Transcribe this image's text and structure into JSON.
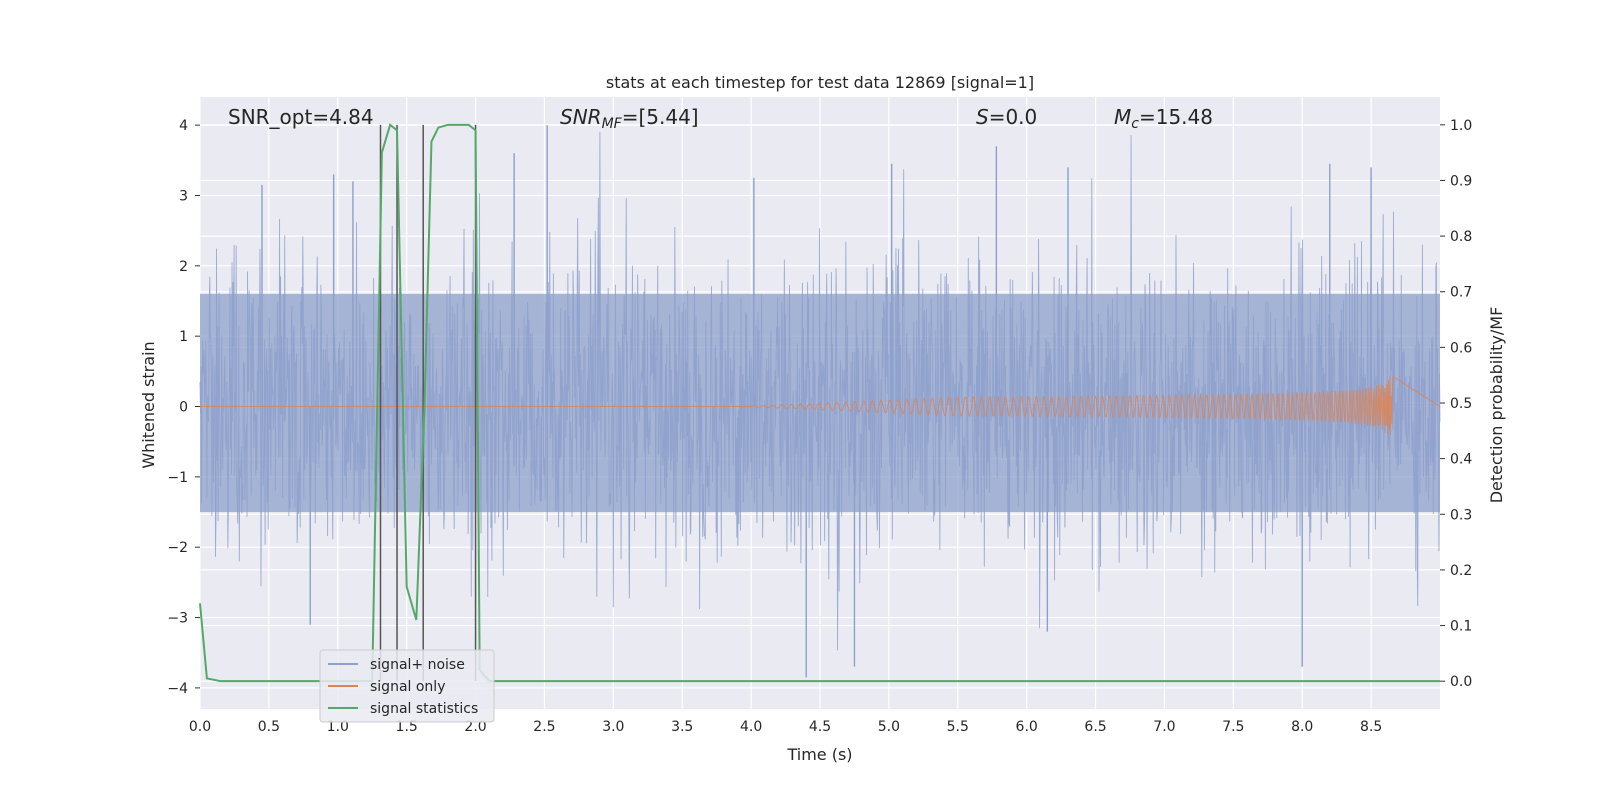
{
  "chart_data": {
    "type": "line",
    "title": "stats at each timestep for test data 12869 [signal=1]",
    "xlabel": "Time (s)",
    "ylabel": "Whitened strain",
    "y2label": "Detection probability/MF",
    "xlim": [
      0.0,
      9.0
    ],
    "ylim": [
      -4.3,
      4.4
    ],
    "y2lim": [
      -0.05,
      1.05
    ],
    "xticks": [
      "0.0",
      "0.5",
      "1.0",
      "1.5",
      "2.0",
      "2.5",
      "3.0",
      "3.5",
      "4.0",
      "4.5",
      "5.0",
      "5.5",
      "6.0",
      "6.5",
      "7.0",
      "7.5",
      "8.0",
      "8.5"
    ],
    "yticks": [
      "4",
      "3",
      "2",
      "1",
      "0",
      "−1",
      "−2",
      "−3",
      "−4"
    ],
    "y2ticks": [
      "1.0",
      "0.9",
      "0.8",
      "0.7",
      "0.6",
      "0.5",
      "0.4",
      "0.3",
      "0.2",
      "0.1",
      "0.0"
    ],
    "grid": true,
    "legend_position": "lower-left",
    "annotations": {
      "snr_opt": "SNR_opt=4.84",
      "snr_mf_main": "SNR",
      "snr_mf_sub": "MF",
      "snr_mf_value": "=[5.44]",
      "s_label": "S",
      "s_value": "=0.0",
      "mc_main": "M",
      "mc_sub": "c",
      "mc_value": "=15.48"
    },
    "series": [
      {
        "name": "signal+ noise",
        "color": "#8da0cb",
        "description_axis": "left",
        "x_range": [
          0.0,
          9.0
        ],
        "envelope_typical": [
          -1.5,
          1.6
        ],
        "envelope_extreme": [
          -3.9,
          4.0
        ],
        "peaks": [
          {
            "x": 0.45,
            "y": 3.15
          },
          {
            "x": 0.97,
            "y": 3.3
          },
          {
            "x": 1.11,
            "y": 3.2
          },
          {
            "x": 2.28,
            "y": 3.6
          },
          {
            "x": 2.52,
            "y": 4.0
          },
          {
            "x": 4.02,
            "y": 3.25
          },
          {
            "x": 5.02,
            "y": 3.45
          },
          {
            "x": 5.78,
            "y": 3.7
          },
          {
            "x": 6.3,
            "y": 3.4
          },
          {
            "x": 8.2,
            "y": 3.45
          },
          {
            "x": 8.5,
            "y": 3.4
          },
          {
            "x": 4.4,
            "y": -3.85
          },
          {
            "x": 4.75,
            "y": -3.7
          },
          {
            "x": 6.15,
            "y": -3.2
          },
          {
            "x": 8.0,
            "y": -3.7
          },
          {
            "x": 0.8,
            "y": -3.1
          }
        ]
      },
      {
        "name": "signal only",
        "color": "#dd8452",
        "description_axis": "left",
        "chirp": {
          "start": 4.0,
          "merger": 8.66,
          "peak_amplitude": 0.85
        }
      },
      {
        "name": "signal statistics",
        "color": "#55a868",
        "description_axis": "right",
        "x": [
          0.0,
          0.05,
          0.15,
          1.25,
          1.32,
          1.38,
          1.43,
          1.5,
          1.57,
          1.63,
          1.68,
          1.73,
          1.8,
          1.95,
          2.0,
          2.03,
          2.1,
          9.0
        ],
        "y": [
          0.14,
          0.005,
          0.0,
          0.0,
          0.95,
          1.0,
          0.99,
          0.17,
          0.11,
          0.5,
          0.97,
          0.995,
          1.0,
          1.0,
          0.99,
          0.02,
          0.0,
          0.0
        ]
      }
    ],
    "vertical_markers": {
      "color": "#555555",
      "x": [
        1.31,
        1.43,
        1.62,
        2.0
      ],
      "top_y2": 1.0
    }
  }
}
